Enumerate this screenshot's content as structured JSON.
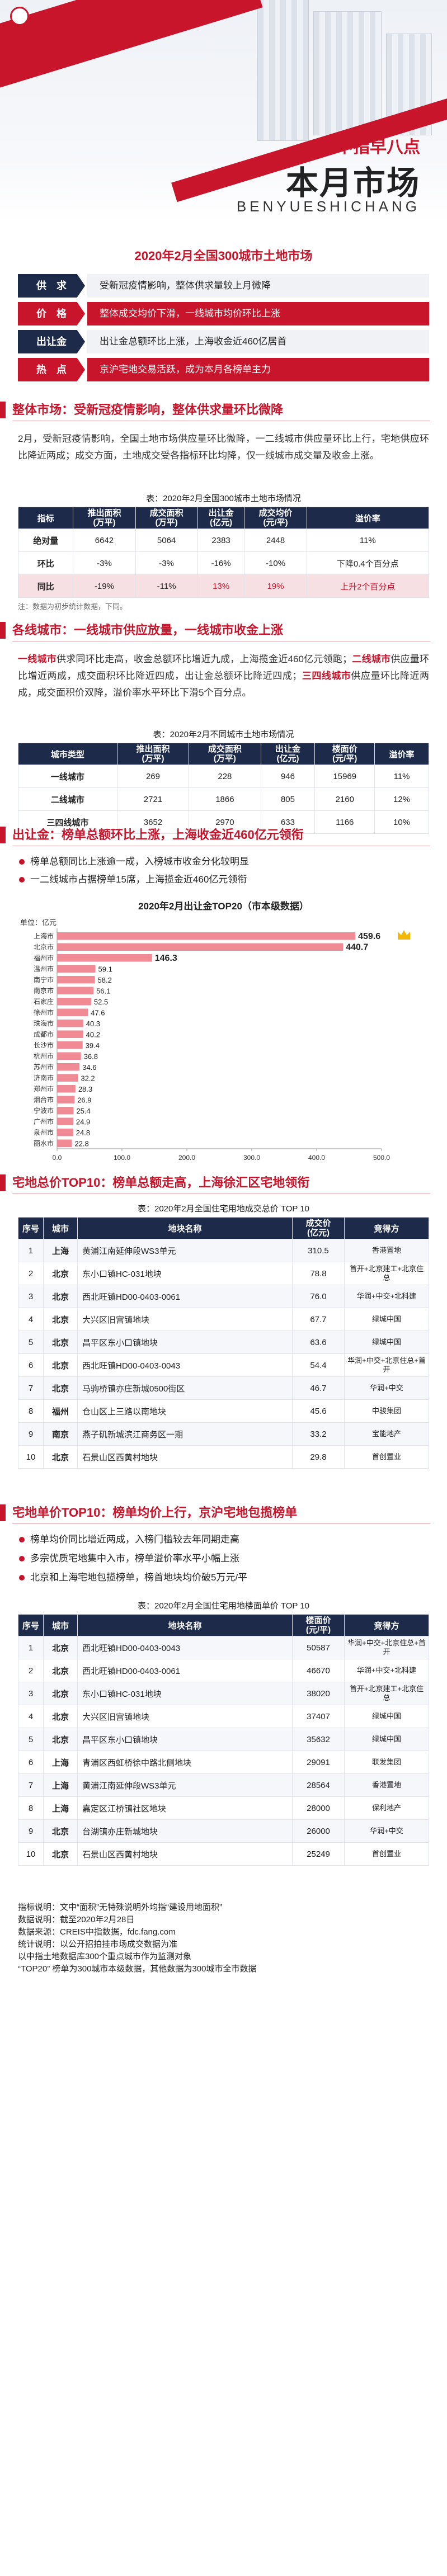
{
  "hero": {
    "sub_title": "中指早八点",
    "main_title": "本月市场",
    "pinyin": "BENYUESHICHANG"
  },
  "summary": {
    "title": "2020年2月全国300城市土地市场",
    "rows": [
      {
        "key": "供　求",
        "value": "受新冠疫情影响，整体供求量较上月微降"
      },
      {
        "key": "价　格",
        "value": "整体成交均价下滑，一线城市均价环比上涨"
      },
      {
        "key": "出让金",
        "value": "出让金总额环比上涨，上海收金近460亿居首"
      },
      {
        "key": "热　点",
        "value": "京沪宅地交易活跃，成为本月各榜单主力"
      }
    ]
  },
  "sections": {
    "s1": "整体市场：受新冠疫情影响，整体供求量环比微降",
    "s2": "各线城市：一线城市供应放量，一线城市收金上涨",
    "s3": "出让金：榜单总额环比上涨，上海收金近460亿元领衔",
    "s4": "宅地总价TOP10：榜单总额走高，上海徐汇区宅地领衔",
    "s5": "宅地单价TOP10：榜单均价上行，京沪宅地包揽榜单"
  },
  "para1": "2月，受新冠疫情影响，全国土地市场供应量环比微降，一二线城市供应量环比上行，宅地供应环比降近两成；成交方面，土地成交受各指标环比均降，仅一线城市成交量及收金上涨。",
  "table1": {
    "caption": "表：2020年2月全国300城市土地市场情况",
    "headers": [
      "指标",
      "推出面积\n(万平)",
      "成交面积\n(万平)",
      "出让金\n(亿元)",
      "成交均价\n(元/平)",
      "溢价率"
    ],
    "rows": [
      [
        "绝对量",
        "6642",
        "5064",
        "2383",
        "2448",
        "11%"
      ],
      [
        "环比",
        "-3%",
        "-3%",
        "-16%",
        "-10%",
        "下降0.4个百分点"
      ],
      [
        "同比",
        "-19%",
        "-11%",
        "13%",
        "19%",
        "上升2个百分点"
      ]
    ],
    "note": "注：数据为初步统计数据，下同。"
  },
  "para2": {
    "a": "一线城市",
    "b": "供求同环比走高，收金总额环比增近九成，上海揽金近460亿元领跑；",
    "c": "二线城市",
    "d": "供应量环比增近两成，成交面积环比降近四成，出让金总额环比降近四成；",
    "e": "三四线城市",
    "f": "供应量环比降近两成，成交面积价双降，溢价率水平环比下滑5个百分点。"
  },
  "table2": {
    "caption": "表：2020年2月不同城市土地市场情况",
    "headers": [
      "城市类型",
      "推出面积\n(万平)",
      "成交面积\n(万平)",
      "出让金\n(亿元)",
      "楼面价\n(元/平)",
      "溢价率"
    ],
    "rows": [
      [
        "一线城市",
        "269",
        "228",
        "946",
        "15969",
        "11%"
      ],
      [
        "二线城市",
        "2721",
        "1866",
        "805",
        "2160",
        "12%"
      ],
      [
        "三四线城市",
        "3652",
        "2970",
        "633",
        "1166",
        "10%"
      ]
    ]
  },
  "bullets1": [
    "榜单总额同比上涨逾一成，入榜城市收金分化较明显",
    "一二线城市占据榜单15席，上海揽金近460亿元领衔"
  ],
  "chart_data": {
    "type": "bar",
    "title": "2020年2月出让金TOP20（市本级数据）",
    "ylabel": "单位：亿元",
    "categories": [
      "上海市",
      "北京市",
      "福州市",
      "温州市",
      "南宁市",
      "南京市",
      "石家庄",
      "徐州市",
      "珠海市",
      "成都市",
      "长沙市",
      "杭州市",
      "苏州市",
      "济南市",
      "郑州市",
      "烟台市",
      "宁波市",
      "广州市",
      "泉州市",
      "丽水市"
    ],
    "values": [
      459.6,
      440.7,
      146.3,
      59.1,
      58.2,
      56.1,
      52.5,
      47.6,
      40.3,
      40.2,
      39.4,
      36.8,
      34.6,
      32.2,
      28.3,
      26.9,
      25.4,
      24.9,
      24.8,
      22.8
    ],
    "xlim": [
      0,
      500
    ],
    "xticks": [
      "0.0",
      "100.0",
      "200.0",
      "300.0",
      "400.0",
      "500.0"
    ]
  },
  "table3": {
    "caption": "表：2020年2月全国住宅用地成交总价 TOP 10",
    "headers": [
      "序号",
      "城市",
      "地块名称",
      "成交价\n(亿元)",
      "竞得方"
    ],
    "rows": [
      [
        "1",
        "上海",
        "黄浦江南延伸段WS3单元",
        "310.5",
        "香港置地"
      ],
      [
        "2",
        "北京",
        "东小口镇HC-031地块",
        "78.8",
        "首开+北京建工+北京住总"
      ],
      [
        "3",
        "北京",
        "西北旺镇HD00-0403-0061",
        "76.0",
        "华润+中交+北科建"
      ],
      [
        "4",
        "北京",
        "大兴区旧宫镇地块",
        "67.7",
        "绿城中国"
      ],
      [
        "5",
        "北京",
        "昌平区东小口镇地块",
        "63.6",
        "绿城中国"
      ],
      [
        "6",
        "北京",
        "西北旺镇HD00-0403-0043",
        "54.4",
        "华润+中交+北京住总+首开"
      ],
      [
        "7",
        "北京",
        "马驹桥镇亦庄新城0500街区",
        "46.7",
        "华润+中交"
      ],
      [
        "8",
        "福州",
        "仓山区上三路以南地块",
        "45.6",
        "中骏集团"
      ],
      [
        "9",
        "南京",
        "燕子矶新城滨江商务区一期",
        "33.2",
        "宝能地产"
      ],
      [
        "10",
        "北京",
        "石景山区西黄村地块",
        "29.8",
        "首创置业"
      ]
    ]
  },
  "bullets2": [
    "榜单均价同比增近两成，入榜门槛较去年同期走高",
    "多宗优质宅地集中入市，榜单溢价率水平小幅上涨",
    "北京和上海宅地包揽榜单，榜首地块均价破5万元/平"
  ],
  "table4": {
    "caption": "表：2020年2月全国住宅用地楼面单价 TOP 10",
    "headers": [
      "序号",
      "城市",
      "地块名称",
      "楼面价\n(元/平)",
      "竞得方"
    ],
    "rows": [
      [
        "1",
        "北京",
        "西北旺镇HD00-0403-0043",
        "50587",
        "华润+中交+北京住总+首开"
      ],
      [
        "2",
        "北京",
        "西北旺镇HD00-0403-0061",
        "46670",
        "华润+中交+北科建"
      ],
      [
        "3",
        "北京",
        "东小口镇HC-031地块",
        "38020",
        "首开+北京建工+北京住总"
      ],
      [
        "4",
        "北京",
        "大兴区旧宫镇地块",
        "37407",
        "绿城中国"
      ],
      [
        "5",
        "北京",
        "昌平区东小口镇地块",
        "35632",
        "绿城中国"
      ],
      [
        "6",
        "上海",
        "青浦区西虹桥徐中路北侧地块",
        "29091",
        "联发集团"
      ],
      [
        "7",
        "上海",
        "黄浦江南延伸段WS3单元",
        "28564",
        "香港置地"
      ],
      [
        "8",
        "上海",
        "嘉定区江桥镇社区地块",
        "28000",
        "保利地产"
      ],
      [
        "9",
        "北京",
        "台湖镇亦庄新城地块",
        "26000",
        "华润+中交"
      ],
      [
        "10",
        "北京",
        "石景山区西黄村地块",
        "25249",
        "首创置业"
      ]
    ]
  },
  "footnotes": {
    "l1": "指标说明：文中“面积”无特殊说明外均指“建设用地面积”",
    "l2": "数据说明：截至2020年2月28日",
    "l3": "数据来源：CREIS中指数据，fdc.fang.com",
    "l4": "统计说明：以公开招拍挂市场成交数据为准",
    "l5": "以中指土地数据库300个重点城市作为监测对象",
    "l6": "“TOP20” 榜单为300城市本级数据，其他数据为300城市全市数据"
  },
  "colors": {
    "accent": "#c9152b",
    "navy": "#1d2a4a",
    "bar": "#f08a95"
  }
}
